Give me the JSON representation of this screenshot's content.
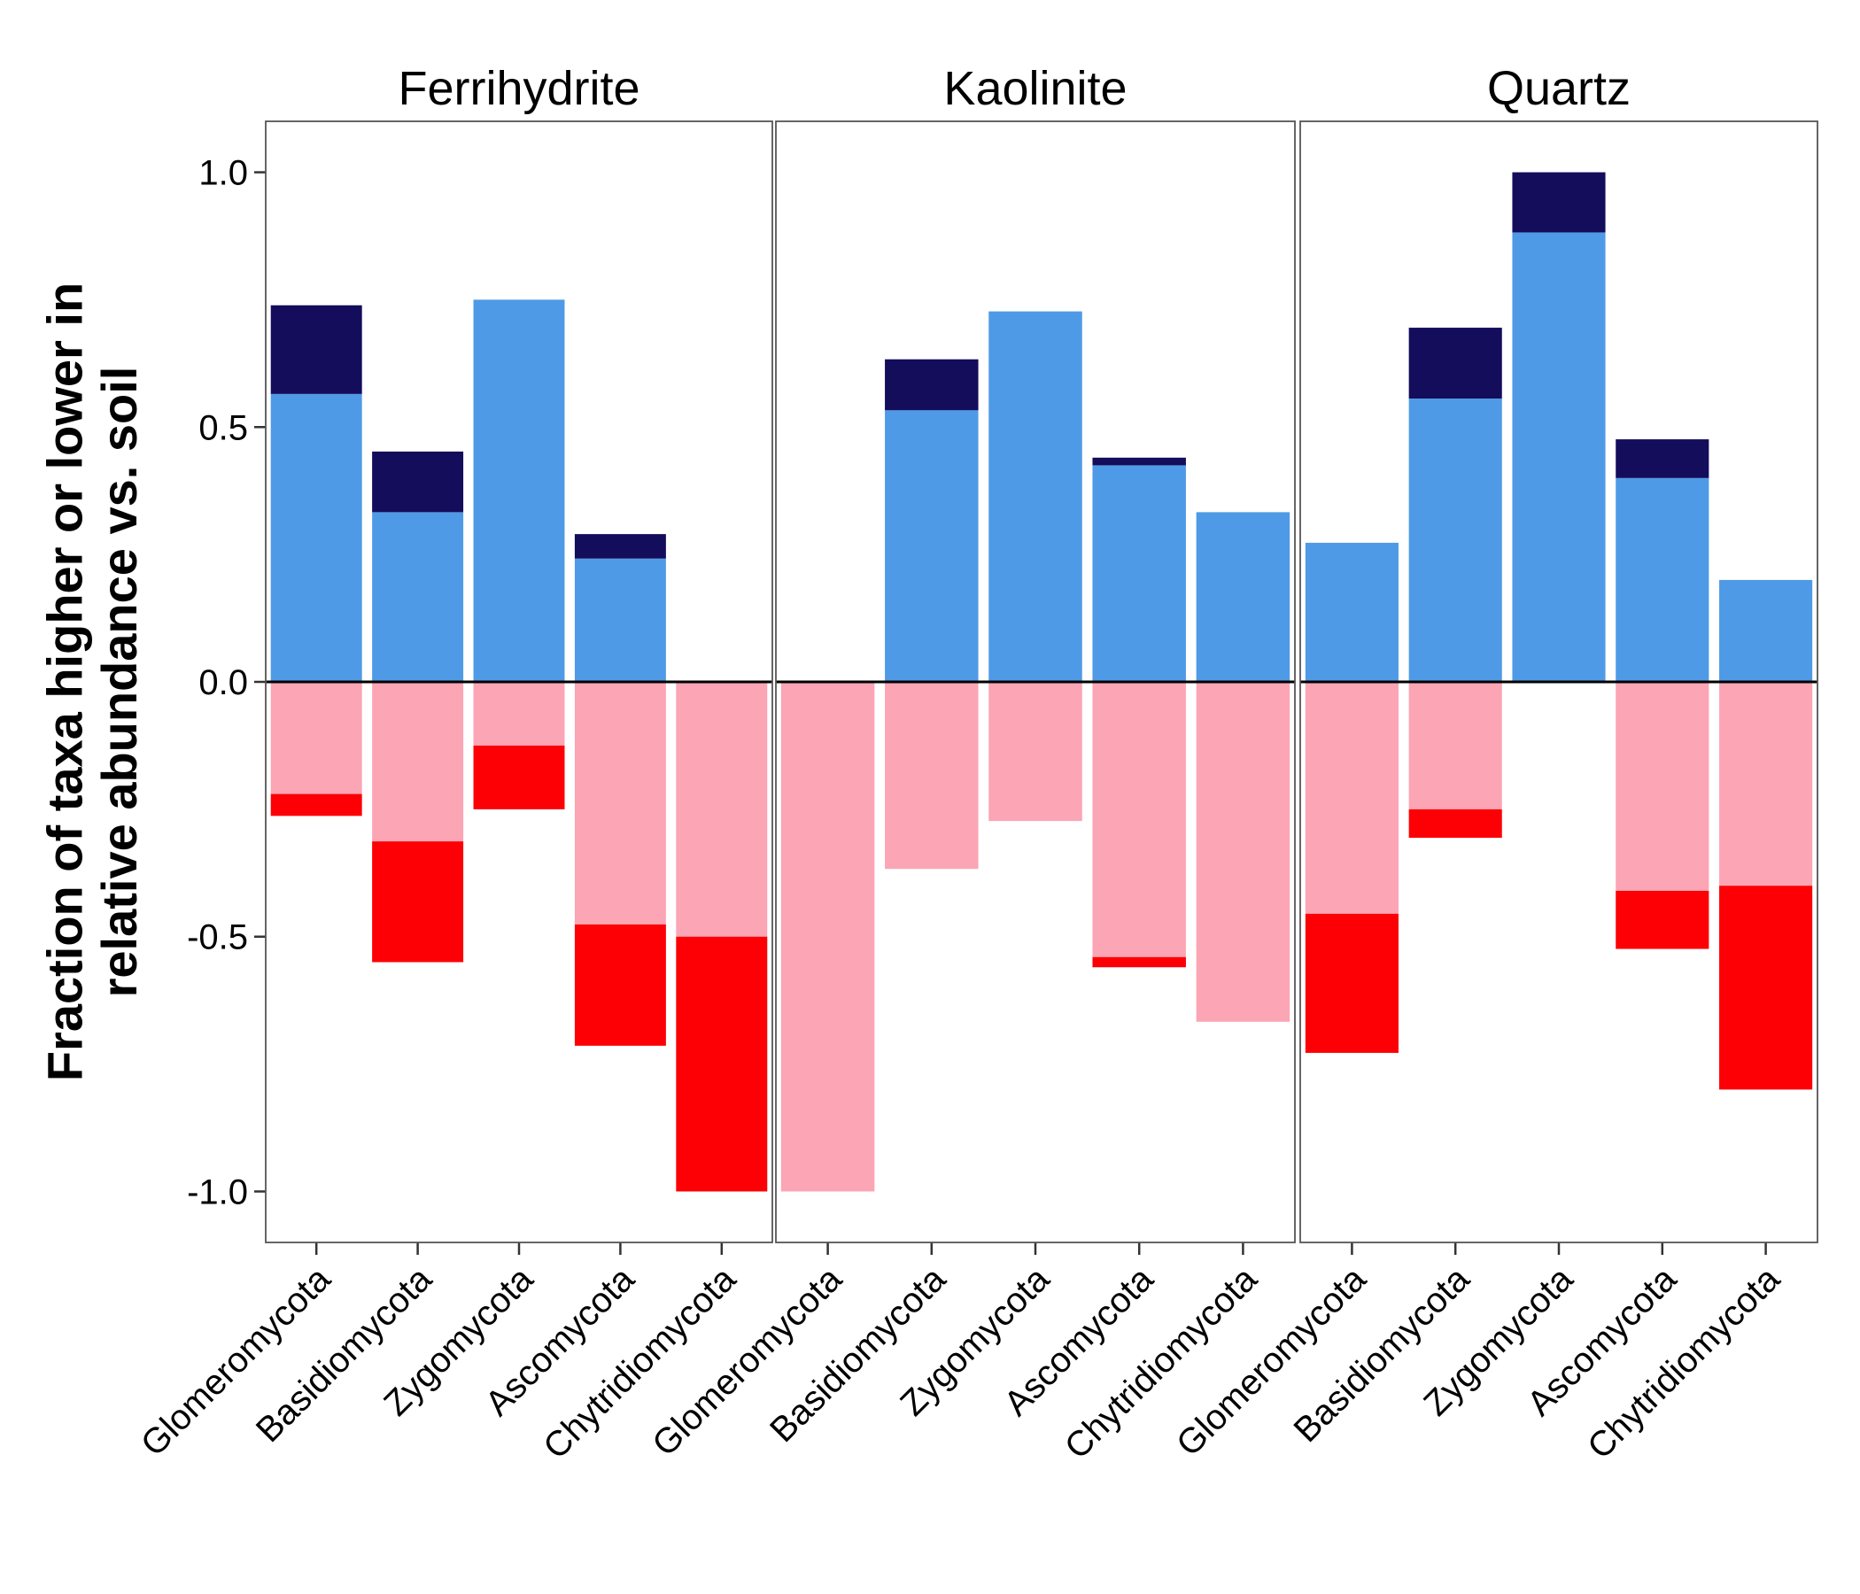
{
  "chart_data": {
    "type": "bar",
    "ylabel_lines": [
      "Fraction of taxa higher or lower in",
      "relative abundance vs. soil"
    ],
    "ylim": [
      -1.1,
      1.1
    ],
    "yticks": [
      1.0,
      0.5,
      0.0,
      -0.5,
      -1.0
    ],
    "ytick_labels": [
      "1.0",
      "0.5",
      "0.0",
      "-0.5",
      "-1.0"
    ],
    "categories": [
      "Glomeromycota",
      "Basidiomycota",
      "Zygomycota",
      "Ascomycota",
      "Chytridiomycota"
    ],
    "colors": {
      "higher_light": "#4F9AE6",
      "higher_dark": "#140D5B",
      "lower_light": "#FBA5B5",
      "lower_dark": "#FC0006"
    },
    "panels": [
      {
        "title": "Ferrihydrite",
        "higher_light": [
          0.565,
          0.333,
          0.75,
          0.242,
          0.0
        ],
        "higher_dark": [
          0.174,
          0.119,
          0.0,
          0.048,
          0.0
        ],
        "lower_light": [
          -0.22,
          -0.313,
          -0.125,
          -0.476,
          -0.5
        ],
        "lower_dark": [
          -0.043,
          -0.237,
          -0.125,
          -0.238,
          -0.5
        ]
      },
      {
        "title": "Kaolinite",
        "higher_light": [
          0.0,
          0.533,
          0.727,
          0.425,
          0.333
        ],
        "higher_dark": [
          0.0,
          0.1,
          0.0,
          0.015,
          0.0
        ],
        "lower_light": [
          -1.0,
          -0.367,
          -0.273,
          -0.54,
          -0.667
        ],
        "lower_dark": [
          0.0,
          0.0,
          0.0,
          -0.02,
          0.0
        ]
      },
      {
        "title": "Quartz",
        "higher_light": [
          0.273,
          0.556,
          0.882,
          0.4,
          0.2
        ],
        "higher_dark": [
          0.0,
          0.139,
          0.118,
          0.076,
          0.0
        ],
        "lower_light": [
          -0.455,
          -0.25,
          0.0,
          -0.41,
          -0.4
        ],
        "lower_dark": [
          -0.273,
          -0.056,
          0.0,
          -0.114,
          -0.4
        ]
      }
    ]
  }
}
